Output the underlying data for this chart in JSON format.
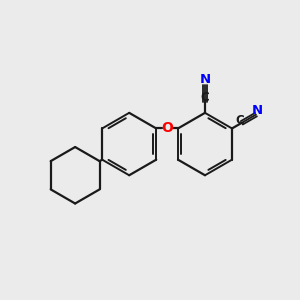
{
  "bg_color": "#ebebeb",
  "bond_color": "#1a1a1a",
  "N_color": "#0000ff",
  "O_color": "#ff0000",
  "C_color": "#1a1a1a",
  "label_N": "N",
  "label_C": "C",
  "label_O": "O",
  "fig_width": 3.0,
  "fig_height": 3.0,
  "dpi": 100
}
